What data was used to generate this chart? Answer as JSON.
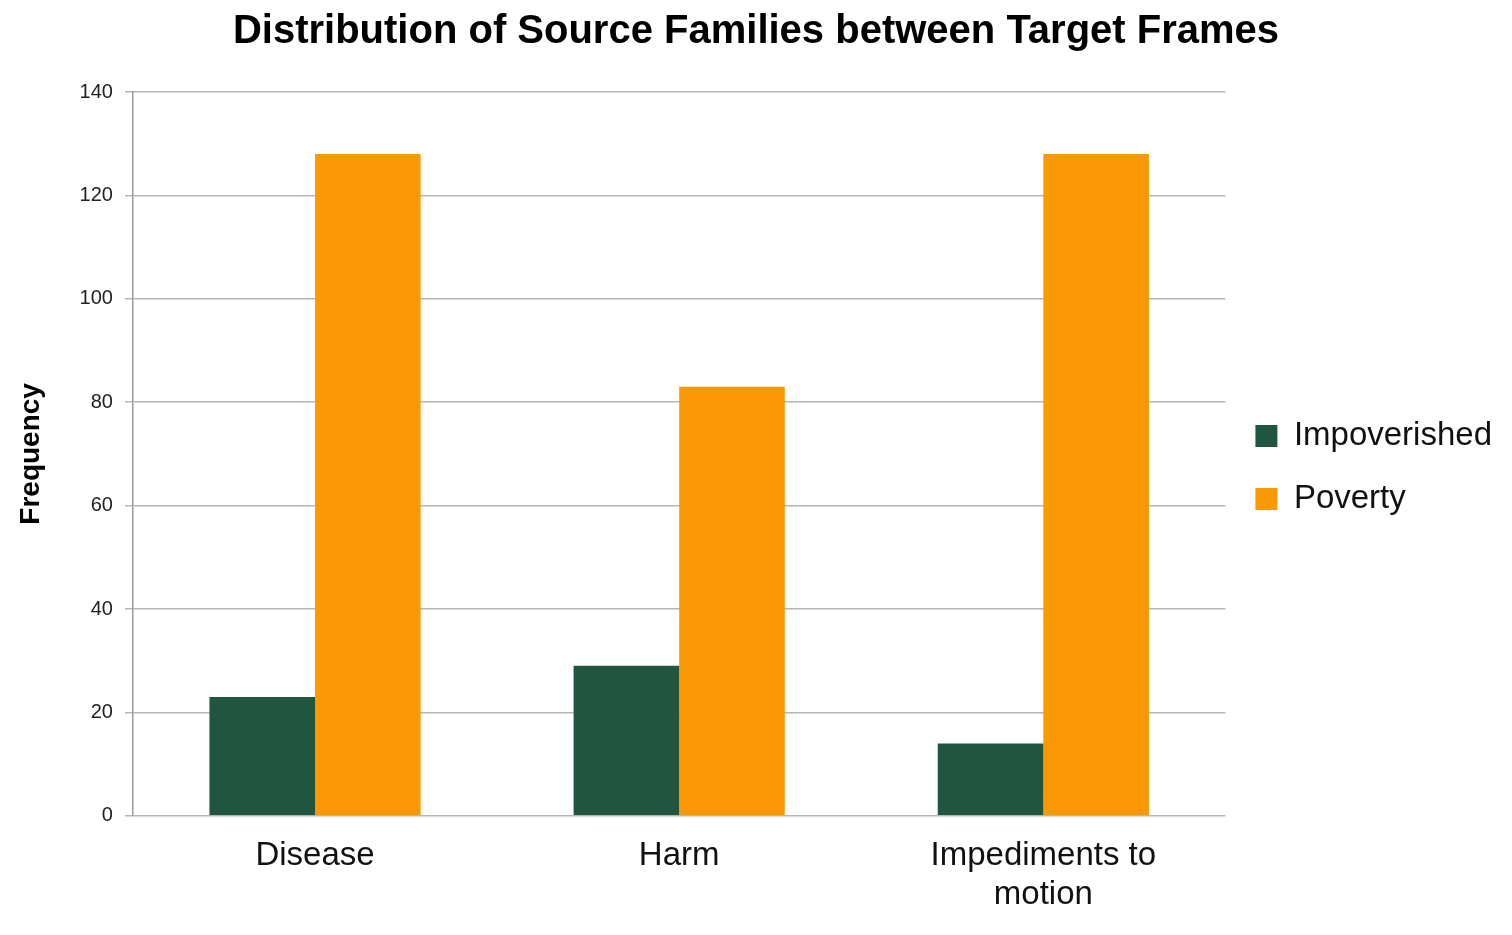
{
  "chart_data": {
    "type": "bar",
    "title": "Distribution of Source Families between Target Frames",
    "ylabel": "Frequency",
    "categories": [
      "Disease",
      "Harm",
      "Impediments to motion"
    ],
    "series": [
      {
        "name": "Impoverished",
        "color": "#20563f",
        "values": [
          23,
          29,
          14
        ]
      },
      {
        "name": "Poverty",
        "color": "#fb9805",
        "values": [
          128,
          83,
          128
        ]
      }
    ],
    "ylim": [
      0,
      140
    ],
    "yticks": [
      0,
      20,
      40,
      60,
      80,
      100,
      120,
      140
    ],
    "grid": "y",
    "legend": "right"
  }
}
